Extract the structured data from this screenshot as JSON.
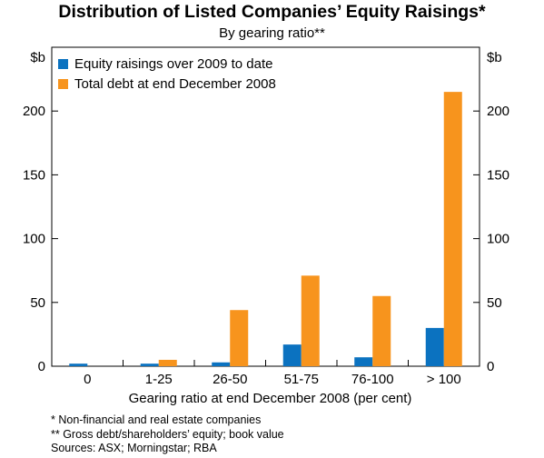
{
  "title": "Distribution of Listed Companies’ Equity Raisings*",
  "subtitle": "By gearing ratio**",
  "notes": [
    "*  Non-financial and real estate companies",
    "** Gross debt/shareholders’ equity; book value",
    "Sources: ASX; Morningstar; RBA"
  ],
  "colors": {
    "series1": "#0b72c0",
    "series2": "#f7941d"
  },
  "chart_data": {
    "type": "bar",
    "title": "Distribution of Listed Companies’ Equity Raisings*",
    "subtitle": "By gearing ratio**",
    "xlabel": "Gearing ratio at end December 2008 (per cent)",
    "ylabel_left": "$b",
    "ylabel_right": "$b",
    "ylim": [
      0,
      250
    ],
    "yticks": [
      0,
      50,
      100,
      150,
      200
    ],
    "categories": [
      "0",
      "1-25",
      "26-50",
      "51-75",
      "76-100",
      "> 100"
    ],
    "series": [
      {
        "name": "Equity raisings over 2009 to date",
        "color": "#0b72c0",
        "values": [
          2,
          2,
          3,
          17,
          7,
          30
        ]
      },
      {
        "name": "Total debt at end December 2008",
        "color": "#f7941d",
        "values": [
          0,
          5,
          44,
          71,
          55,
          215
        ]
      }
    ],
    "legend_position": "top-left",
    "grid": false
  }
}
